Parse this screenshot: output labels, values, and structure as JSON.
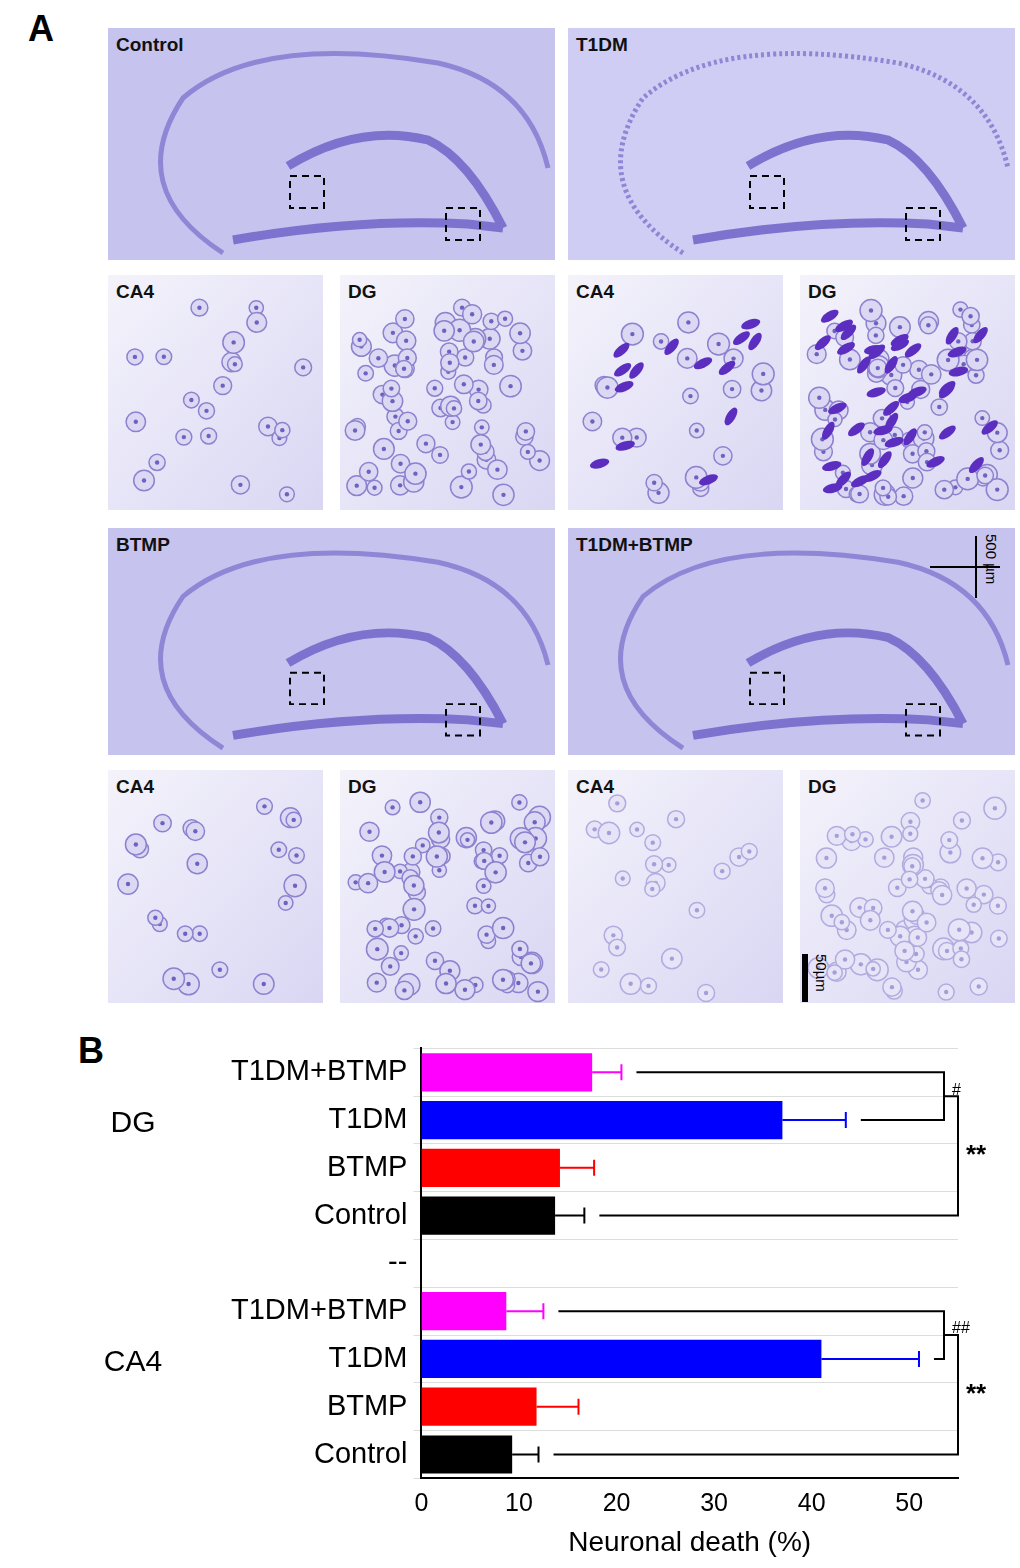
{
  "panel_a": {
    "label": "A",
    "panels": [
      {
        "title": "Control",
        "insets": [
          "CA4",
          "DG"
        ]
      },
      {
        "title": "T1DM",
        "insets": [
          "CA4",
          "DG"
        ]
      },
      {
        "title": "BTMP",
        "insets": [
          "CA4",
          "DG"
        ]
      },
      {
        "title": "T1DM+BTMP",
        "insets": [
          "CA4",
          "DG"
        ]
      }
    ],
    "scale_bars": [
      "500 µm",
      "50µm"
    ]
  },
  "panel_b_label": "B",
  "chart_data": {
    "type": "bar",
    "orientation": "horizontal",
    "categories": [
      "T1DM+BTMP",
      "T1DM",
      "BTMP",
      "Control",
      "--",
      "T1DM+BTMP",
      "T1DM",
      "BTMP",
      "Control"
    ],
    "values": [
      17.5,
      37.0,
      14.2,
      13.7,
      null,
      8.7,
      41.0,
      11.8,
      9.3
    ],
    "errors": [
      3.0,
      6.5,
      3.5,
      3.0,
      null,
      3.8,
      10.0,
      4.3,
      2.7
    ],
    "colors": [
      "#ff00ff",
      "#0000ff",
      "#ff0000",
      "#000000",
      null,
      "#ff00ff",
      "#0000ff",
      "#ff0000",
      "#000000"
    ],
    "groups": [
      {
        "label": "DG",
        "from": 0,
        "to": 3
      },
      {
        "label": "CA4",
        "from": 5,
        "to": 8
      }
    ],
    "annotations": [
      {
        "text": "#",
        "from": 0,
        "to": 1
      },
      {
        "text": "**",
        "from": 1,
        "to": 3
      },
      {
        "text": "##",
        "from": 5,
        "to": 6
      },
      {
        "text": "**",
        "from": 6,
        "to": 8
      }
    ],
    "x_label": "Neuronal death (%)",
    "xlim": [
      0,
      55
    ],
    "xticks": [
      0,
      10,
      20,
      30,
      40,
      50
    ],
    "grid": true
  }
}
